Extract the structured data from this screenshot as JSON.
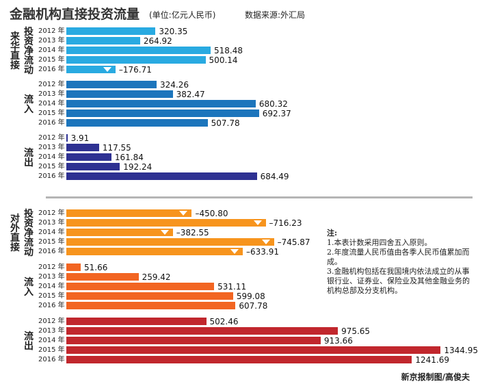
{
  "header": {
    "title": "金融机构直接投资流量",
    "unit": "(单位:亿元人民币)",
    "source": "数据来源:外汇局"
  },
  "chart_data": {
    "type": "bar",
    "orientation": "horizontal",
    "title": "金融机构直接投资流量",
    "unit": "亿元人民币",
    "categories": [
      "2012 年",
      "2013 年",
      "2014 年",
      "2015 年",
      "2016 年"
    ],
    "groups": [
      {
        "section": "来华直接",
        "name": "投资净流动",
        "color": "#29aae1",
        "values": [
          320.35,
          264.92,
          518.48,
          500.14,
          -176.71
        ],
        "labels": [
          "320.35",
          "264.92",
          "518.48",
          "500.14",
          "–176.71"
        ]
      },
      {
        "section": "来华直接",
        "name": "流入",
        "color": "#1c75bc",
        "values": [
          324.26,
          382.47,
          680.32,
          692.37,
          507.78
        ],
        "labels": [
          "324.26",
          "382.47",
          "680.32",
          "692.37",
          "507.78"
        ]
      },
      {
        "section": "来华直接",
        "name": "流出",
        "color": "#2e3192",
        "values": [
          3.91,
          117.55,
          161.84,
          192.24,
          684.49
        ],
        "labels": [
          "3.91",
          "117.55",
          "161.84",
          "192.24",
          "684.49"
        ]
      },
      {
        "section": "对外直接",
        "name": "投资净流动",
        "color": "#f7941d",
        "values": [
          -450.8,
          -716.23,
          -382.55,
          -745.87,
          -633.91
        ],
        "labels": [
          "–450.80",
          "–716.23",
          "–382.55",
          "–745.87",
          "–633.91"
        ]
      },
      {
        "section": "对外直接",
        "name": "流入",
        "color": "#f26522",
        "values": [
          51.66,
          259.42,
          531.11,
          599.08,
          607.78
        ],
        "labels": [
          "51.66",
          "259.42",
          "531.11",
          "599.08",
          "607.78"
        ]
      },
      {
        "section": "对外直接",
        "name": "流出",
        "color": "#c1272d",
        "values": [
          502.46,
          975.65,
          913.66,
          1344.95,
          1241.69
        ],
        "labels": [
          "502.46",
          "975.65",
          "913.66",
          "1344.95",
          "1241.69"
        ]
      }
    ],
    "sections": [
      "来华直接",
      "对外直接"
    ]
  },
  "notes": {
    "heading": "注:",
    "items": [
      "1.本表计数采用四舍五入原则。",
      "2.年度流量人民币值由各季人民币值累加而成。",
      "3.金融机构包括在我国境内依法成立的从事银行业、证券业、保险业及其他金融业务的机构总部及分支机构。"
    ]
  },
  "credit": "新京报制图/高俊夫"
}
